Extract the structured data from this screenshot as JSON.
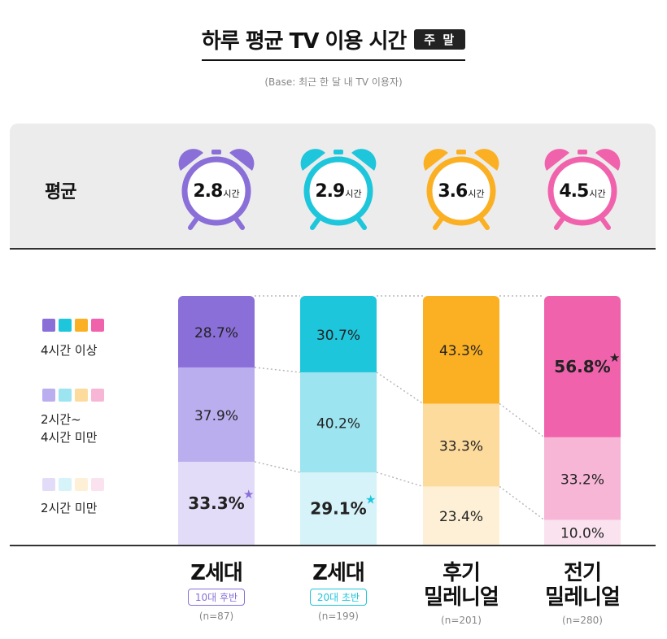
{
  "title": "하루 평균 TV 이용 시간",
  "badge": "주 말",
  "base_note": "(Base: 최근 한 달 내 TV 이용자)",
  "average_label": "평균",
  "colors": {
    "gen_z_late_teens": [
      "#8a6fd8",
      "#bbaeef",
      "#e3dcf8"
    ],
    "gen_z_early_twenties": [
      "#1ec6dc",
      "#9ce4ef",
      "#d5f3f8"
    ],
    "late_millennials": [
      "#fbb024",
      "#fddb9d",
      "#fef0d6"
    ],
    "early_millennials": [
      "#f063ac",
      "#f7b6d6",
      "#fbe2ef"
    ]
  },
  "averages": [
    {
      "value": "2.8",
      "unit": "시간"
    },
    {
      "value": "2.9",
      "unit": "시간"
    },
    {
      "value": "3.6",
      "unit": "시간"
    },
    {
      "value": "4.5",
      "unit": "시간"
    }
  ],
  "legend": [
    {
      "label": "4시간 이상"
    },
    {
      "label": "2시간~\n4시간 미만"
    },
    {
      "label": "2시간 미만"
    }
  ],
  "chart_data": {
    "type": "bar",
    "stacked": true,
    "normalized": true,
    "categories": [
      "Z세대 10대 후반",
      "Z세대 20대 초반",
      "후기 밀레니얼",
      "전기 밀레니얼"
    ],
    "series": [
      {
        "name": "4시간 이상",
        "values": [
          28.7,
          30.7,
          43.3,
          56.8
        ]
      },
      {
        "name": "2시간~4시간 미만",
        "values": [
          37.9,
          40.2,
          33.3,
          33.2
        ]
      },
      {
        "name": "2시간 미만",
        "values": [
          33.3,
          29.1,
          23.4,
          10.0
        ]
      }
    ],
    "labels": [
      [
        "28.7%",
        "37.9%",
        "33.3%"
      ],
      [
        "30.7%",
        "40.2%",
        "29.1%"
      ],
      [
        "43.3%",
        "33.3%",
        "23.4%"
      ],
      [
        "56.8%",
        "33.2%",
        "10.0%"
      ]
    ],
    "highlighted": [
      [
        2
      ],
      [
        2
      ],
      [],
      [
        0
      ]
    ],
    "ylim": [
      0,
      100
    ]
  },
  "categories": [
    {
      "name": "Z세대",
      "sub": "10대 후반",
      "n": "(n=87)"
    },
    {
      "name": "Z세대",
      "sub": "20대 초반",
      "n": "(n=199)"
    },
    {
      "name": "후기\n밀레니얼",
      "sub": "",
      "n": "(n=201)"
    },
    {
      "name": "전기\n밀레니얼",
      "sub": "",
      "n": "(n=280)"
    }
  ]
}
